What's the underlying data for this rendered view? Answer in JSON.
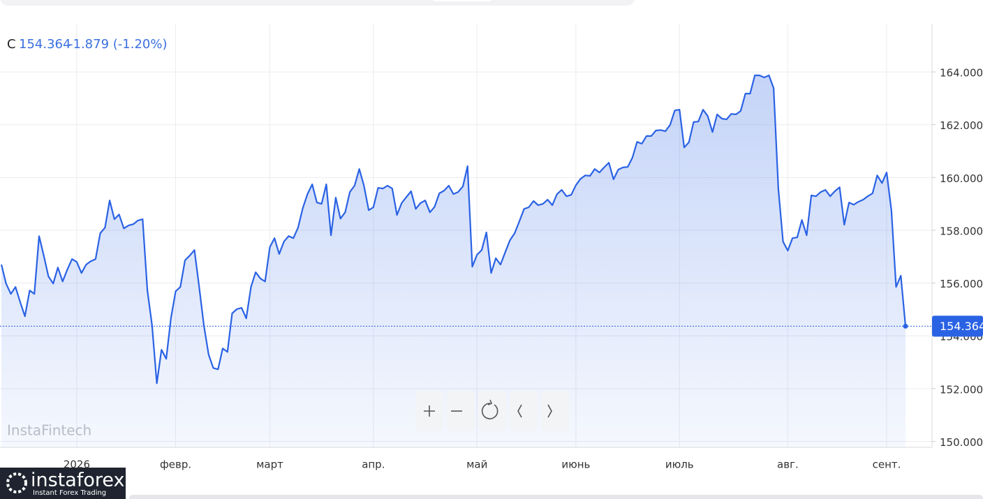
{
  "chart_data": {
    "type": "line",
    "header": {
      "symbol": "C",
      "change": "-1.879 (-1.20%)"
    },
    "watermark": "InstaFintech",
    "logo": {
      "name": "instaforex",
      "tagline": "Instant Forex Trading"
    },
    "categories": [
      null,
      null,
      null,
      null,
      null,
      null,
      null,
      null,
      null,
      null,
      null,
      null,
      null,
      null,
      null,
      null,
      "2026",
      null,
      null,
      null,
      null,
      null,
      null,
      null,
      null,
      null,
      null,
      null,
      null,
      null,
      null,
      null,
      null,
      null,
      null,
      null,
      null,
      "февр.",
      null,
      null,
      null,
      null,
      null,
      null,
      null,
      null,
      null,
      null,
      null,
      null,
      null,
      null,
      null,
      null,
      null,
      null,
      null,
      "март",
      null,
      null,
      null,
      null,
      null,
      null,
      null,
      null,
      null,
      null,
      null,
      null,
      null,
      null,
      null,
      null,
      null,
      null,
      null,
      null,
      null,
      "апр.",
      null,
      null,
      null,
      null,
      null,
      null,
      null,
      null,
      null,
      null,
      null,
      null,
      null,
      null,
      null,
      null,
      null,
      null,
      null,
      null,
      null,
      "май",
      null,
      null,
      null,
      null,
      null,
      null,
      null,
      null,
      null,
      null,
      null,
      null,
      null,
      null,
      null,
      null,
      null,
      null,
      null,
      null,
      "июнь",
      null,
      null,
      null,
      null,
      null,
      null,
      null,
      null,
      null,
      null,
      null,
      null,
      null,
      null,
      null,
      null,
      null,
      null,
      null,
      null,
      null,
      "июль",
      null,
      null,
      null,
      null,
      null,
      null,
      null,
      null,
      null,
      null,
      null,
      null,
      null,
      null,
      null,
      null,
      null,
      null,
      null,
      null,
      null,
      null,
      "авг.",
      null,
      null,
      null,
      null,
      null,
      null,
      null,
      null,
      null,
      null,
      null,
      null,
      null,
      null,
      null,
      null,
      null,
      null,
      null,
      null,
      "сент.",
      null,
      null,
      null,
      null
    ],
    "series": [
      {
        "name": "C",
        "color": "#2a62e4",
        "values": [
          156.7,
          155.98,
          155.59,
          155.85,
          155.27,
          154.74,
          155.72,
          155.59,
          157.78,
          157.04,
          156.25,
          155.98,
          156.59,
          156.06,
          156.51,
          156.91,
          156.8,
          156.38,
          156.7,
          156.83,
          156.91,
          157.89,
          158.1,
          159.13,
          158.42,
          158.6,
          158.07,
          158.18,
          158.23,
          158.37,
          158.42,
          155.72,
          154.4,
          152.2,
          153.47,
          153.13,
          154.66,
          155.69,
          155.85,
          156.86,
          157.04,
          157.25,
          155.85,
          154.4,
          153.29,
          152.78,
          152.73,
          153.52,
          153.39,
          154.85,
          155.01,
          155.06,
          154.66,
          155.85,
          156.41,
          156.17,
          156.06,
          157.36,
          157.7,
          157.1,
          157.57,
          157.78,
          157.7,
          158.1,
          158.84,
          159.37,
          159.74,
          159.05,
          159.0,
          159.74,
          157.81,
          159.24,
          158.44,
          158.68,
          159.45,
          159.69,
          160.32,
          159.69,
          158.76,
          158.87,
          159.61,
          159.58,
          159.69,
          159.58,
          158.58,
          159.03,
          159.26,
          159.48,
          158.81,
          159.03,
          159.13,
          158.68,
          158.89,
          159.4,
          159.5,
          159.69,
          159.37,
          159.45,
          159.66,
          160.43,
          156.62,
          157.07,
          157.25,
          157.92,
          156.38,
          156.94,
          156.7,
          157.17,
          157.62,
          157.89,
          158.34,
          158.81,
          158.87,
          159.11,
          158.95,
          159.0,
          159.16,
          158.95,
          159.37,
          159.53,
          159.29,
          159.34,
          159.71,
          159.95,
          160.08,
          160.06,
          160.32,
          160.19,
          160.38,
          160.56,
          159.93,
          160.3,
          160.38,
          160.4,
          160.75,
          161.35,
          161.28,
          161.57,
          161.57,
          161.78,
          161.8,
          161.75,
          161.99,
          162.54,
          162.57,
          161.14,
          161.33,
          162.1,
          162.12,
          162.57,
          162.33,
          161.72,
          162.39,
          162.23,
          162.2,
          162.41,
          162.39,
          162.52,
          163.18,
          163.18,
          163.87,
          163.87,
          163.79,
          163.87,
          163.39,
          159.56,
          157.57,
          157.23,
          157.7,
          157.73,
          158.39,
          157.81,
          159.32,
          159.29,
          159.45,
          159.53,
          159.29,
          159.48,
          159.63,
          158.21,
          159.05,
          158.97,
          159.08,
          159.16,
          159.29,
          159.4,
          160.08,
          159.79,
          160.19,
          158.76,
          155.85,
          156.28,
          154.364
        ]
      }
    ],
    "ylim": [
      149.8,
      165.8
    ],
    "yticks": [
      {
        "value": 150,
        "label": "150.000"
      },
      {
        "value": 152,
        "label": "152.000"
      },
      {
        "value": 154,
        "label": "154.000"
      },
      {
        "value": 156,
        "label": "156.000"
      },
      {
        "value": 158,
        "label": "158.000"
      },
      {
        "value": 160,
        "label": "160.000"
      },
      {
        "value": 162,
        "label": "162.000"
      },
      {
        "value": 164,
        "label": "164.000"
      }
    ],
    "grid": true
  }
}
